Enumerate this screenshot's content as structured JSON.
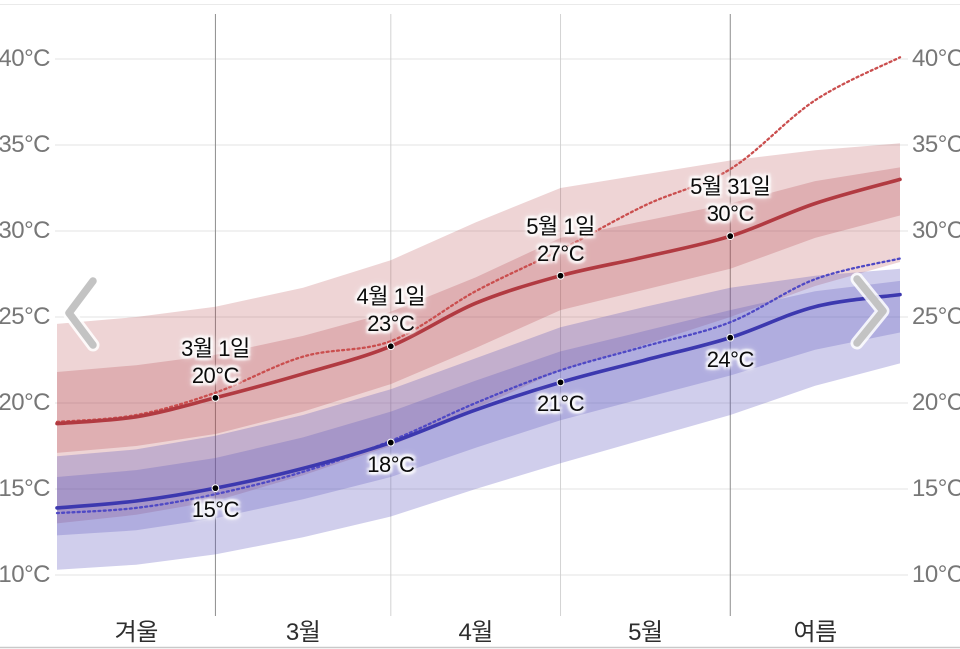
{
  "page": {
    "background": "#ffffff"
  },
  "controls": {
    "prev_icon": "chevron-left",
    "next_icon": "chevron-right"
  },
  "colors": {
    "max_line": "#b13a41",
    "max_dotted": "#ca4e4e",
    "min_line": "#3c38af",
    "min_dotted": "#4f49c5",
    "max_band": "177,59,66",
    "min_band": "86,80,186",
    "grid_horizontal": "#e3e3e3",
    "grid_vertical_light": "#d2d2d2",
    "grid_vertical_strong": "#8d8d8d",
    "border_top": "#eaeaea",
    "border_bottom": "#c9c9c9",
    "axis_text": "#777777",
    "x_axis_text": "#2e2e2e",
    "marker_dot": "#000000",
    "chevron": "#c3c3c3"
  },
  "chart_data": {
    "type": "area",
    "title": "",
    "xlabel": "",
    "ylabel": "°C",
    "grid": true,
    "legend": "none",
    "x_unit": "days (t=0 ≈ Feb 1, t=149 ≈ Jun 30)",
    "x_range": [
      0,
      149
    ],
    "y_range": [
      10,
      40
    ],
    "y_ticks": [
      {
        "value": 40,
        "label": "40°C"
      },
      {
        "value": 35,
        "label": "35°C"
      },
      {
        "value": 30,
        "label": "30°C"
      },
      {
        "value": 25,
        "label": "25°C"
      },
      {
        "value": 20,
        "label": "20°C"
      },
      {
        "value": 15,
        "label": "15°C"
      },
      {
        "value": 10,
        "label": "10°C"
      }
    ],
    "x_labels": [
      {
        "t": 14,
        "label": "겨울"
      },
      {
        "t": 43.5,
        "label": "3월"
      },
      {
        "t": 74,
        "label": "4월"
      },
      {
        "t": 104,
        "label": "5월"
      },
      {
        "t": 134,
        "label": "여름"
      }
    ],
    "x_gridlines": [
      {
        "t": 28,
        "date": "3월 1일",
        "strong": true
      },
      {
        "t": 59,
        "date": "4월 1일",
        "strong": false
      },
      {
        "t": 89,
        "date": "5월 1일",
        "strong": false
      },
      {
        "t": 119,
        "date": "5월 31일",
        "strong": true
      }
    ],
    "t": [
      0,
      14,
      28,
      43.5,
      59,
      74,
      89,
      104,
      119,
      134,
      149
    ],
    "series": [
      {
        "name": "max-temp-outer-band",
        "kind": "band",
        "group": "max",
        "alpha": 0.22,
        "top": [
          24.6,
          25.0,
          25.6,
          26.7,
          28.3,
          30.5,
          32.5,
          33.3,
          34.1,
          34.7,
          35.1
        ],
        "bottom": [
          13.0,
          13.5,
          14.3,
          15.8,
          17.5,
          19.7,
          21.9,
          23.4,
          25.0,
          26.8,
          28.2
        ]
      },
      {
        "name": "min-temp-outer-band",
        "kind": "band",
        "group": "min",
        "alpha": 0.28,
        "top": [
          16.9,
          17.3,
          18.1,
          19.3,
          20.8,
          22.6,
          24.4,
          25.6,
          26.7,
          27.4,
          27.8
        ],
        "bottom": [
          10.3,
          10.6,
          11.2,
          12.2,
          13.4,
          15.0,
          16.5,
          17.9,
          19.3,
          21.0,
          22.3
        ]
      },
      {
        "name": "min-temp-inner-band",
        "kind": "band",
        "group": "min",
        "alpha": 0.26,
        "top": [
          15.7,
          16.1,
          16.8,
          18.0,
          19.5,
          21.3,
          23.0,
          24.2,
          25.4,
          26.5,
          27.1
        ],
        "bottom": [
          12.3,
          12.6,
          13.3,
          14.4,
          15.7,
          17.4,
          19.0,
          20.3,
          21.6,
          23.1,
          24.1
        ]
      },
      {
        "name": "max-temp-inner-band",
        "kind": "band",
        "group": "max",
        "alpha": 0.24,
        "top": [
          21.8,
          22.2,
          22.8,
          23.9,
          25.3,
          27.3,
          29.6,
          30.6,
          31.6,
          32.9,
          33.7
        ],
        "bottom": [
          17.1,
          17.5,
          18.2,
          19.5,
          21.1,
          23.2,
          25.4,
          26.6,
          27.8,
          29.6,
          30.9
        ]
      },
      {
        "name": "max-temp-dotted",
        "kind": "line",
        "group": "max",
        "style": "dotted",
        "values": [
          18.9,
          19.3,
          20.6,
          22.7,
          23.6,
          26.5,
          28.9,
          31.5,
          33.6,
          37.6,
          40.1
        ]
      },
      {
        "name": "min-temp-dotted",
        "kind": "line",
        "group": "min",
        "style": "dotted",
        "values": [
          13.6,
          13.9,
          14.7,
          16.0,
          17.8,
          20.0,
          21.9,
          23.3,
          24.7,
          27.2,
          28.4
        ]
      },
      {
        "name": "max-temp",
        "kind": "line",
        "group": "max",
        "style": "solid",
        "values": [
          18.8,
          19.2,
          20.3,
          21.7,
          23.3,
          25.8,
          27.4,
          28.5,
          29.7,
          31.6,
          33.0
        ]
      },
      {
        "name": "min-temp",
        "kind": "line",
        "group": "min",
        "style": "solid",
        "values": [
          13.9,
          14.3,
          15.05,
          16.2,
          17.7,
          19.6,
          21.2,
          22.5,
          23.8,
          25.6,
          26.3
        ]
      }
    ],
    "markers": [
      {
        "series": "max-temp",
        "t": 28,
        "value": 20.3,
        "date_label": "3월 1일",
        "temp_label": "20°C",
        "label_pos": "above"
      },
      {
        "series": "max-temp",
        "t": 59,
        "value": 23.3,
        "date_label": "4월 1일",
        "temp_label": "23°C",
        "label_pos": "above"
      },
      {
        "series": "max-temp",
        "t": 89,
        "value": 27.4,
        "date_label": "5월 1일",
        "temp_label": "27°C",
        "label_pos": "above"
      },
      {
        "series": "max-temp",
        "t": 119,
        "value": 29.7,
        "date_label": "5월 31일",
        "temp_label": "30°C",
        "label_pos": "above"
      },
      {
        "series": "min-temp",
        "t": 28,
        "value": 15.05,
        "date_label": "",
        "temp_label": "15°C",
        "label_pos": "below"
      },
      {
        "series": "min-temp",
        "t": 59,
        "value": 17.7,
        "date_label": "",
        "temp_label": "18°C",
        "label_pos": "below"
      },
      {
        "series": "min-temp",
        "t": 89,
        "value": 21.2,
        "date_label": "",
        "temp_label": "21°C",
        "label_pos": "below"
      },
      {
        "series": "min-temp",
        "t": 119,
        "value": 23.8,
        "date_label": "",
        "temp_label": "24°C",
        "label_pos": "below"
      }
    ]
  }
}
